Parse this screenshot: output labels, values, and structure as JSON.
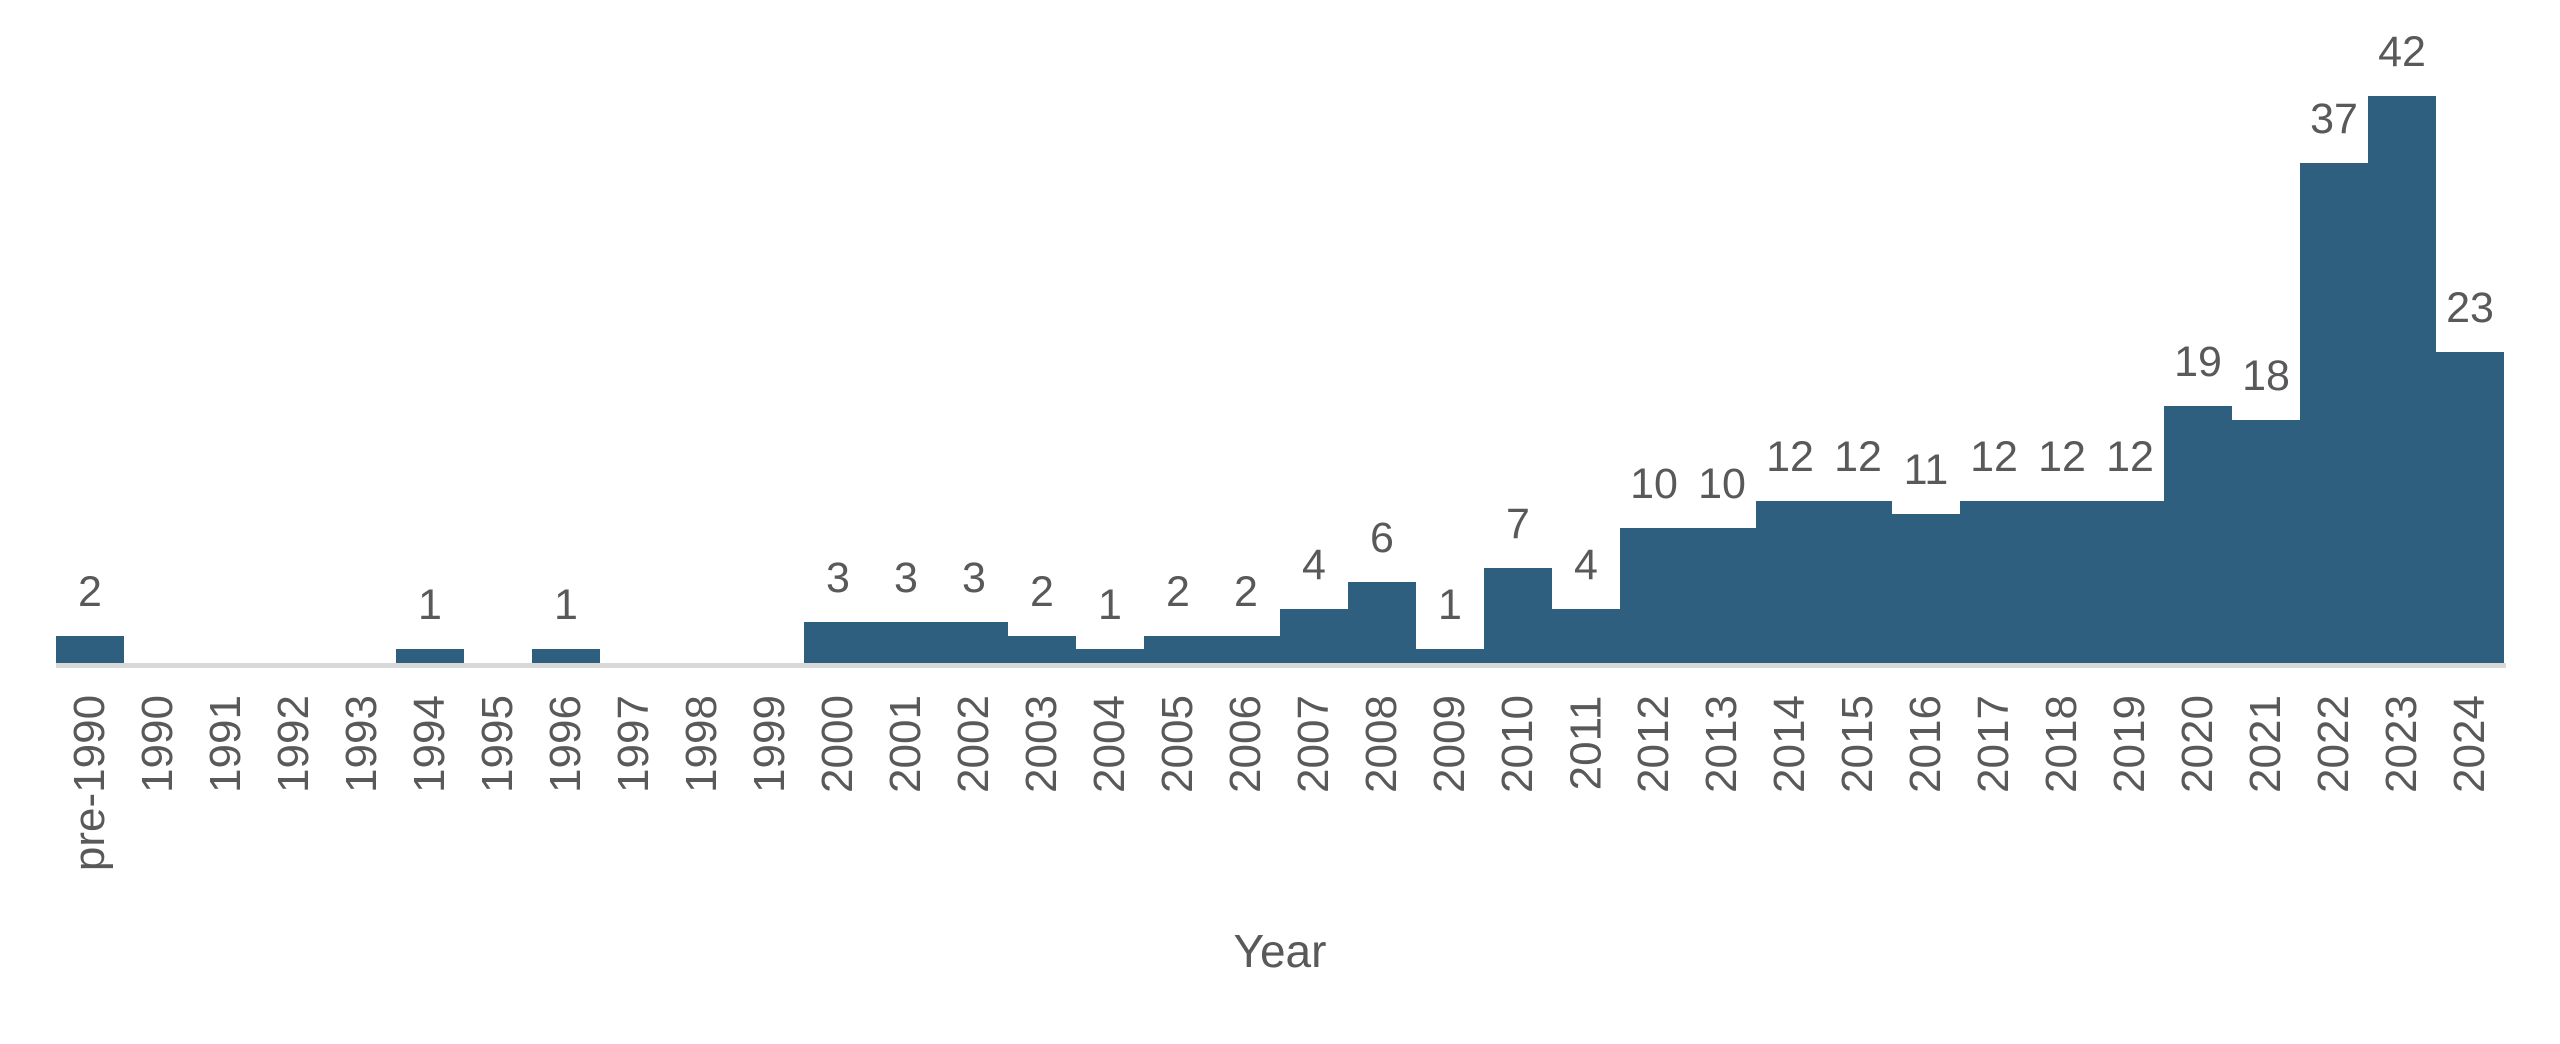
{
  "chart_data": {
    "type": "bar",
    "title": "",
    "xlabel": "Year",
    "ylabel": "",
    "categories": [
      "pre-1990",
      "1990",
      "1991",
      "1992",
      "1993",
      "1994",
      "1995",
      "1996",
      "1997",
      "1998",
      "1999",
      "2000",
      "2001",
      "2002",
      "2003",
      "2004",
      "2005",
      "2006",
      "2007",
      "2008",
      "2009",
      "2010",
      "2011",
      "2012",
      "2013",
      "2014",
      "2015",
      "2016",
      "2017",
      "2018",
      "2019",
      "2020",
      "2021",
      "2022",
      "2023",
      "2024"
    ],
    "values": [
      2,
      0,
      0,
      0,
      0,
      1,
      0,
      1,
      0,
      0,
      0,
      3,
      3,
      3,
      2,
      1,
      2,
      2,
      4,
      6,
      1,
      7,
      4,
      10,
      10,
      12,
      12,
      11,
      12,
      12,
      12,
      19,
      18,
      37,
      42,
      23
    ],
    "ylim": [
      0,
      42
    ],
    "grid": false,
    "legend": false,
    "bars_contiguous": true,
    "value_labels_shown_for_nonzero_only": true,
    "tick_label_rotation_degrees": 90,
    "colors": {
      "bar_fill": "#2E5F7F",
      "text": "#595959",
      "axis_line": "#D9D9D9",
      "background": "#FFFFFF"
    }
  }
}
